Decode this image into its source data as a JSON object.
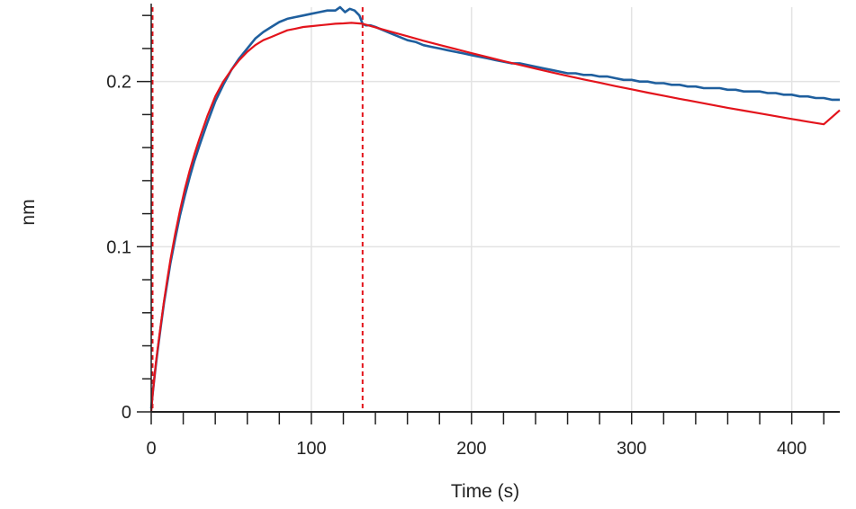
{
  "chart_data": {
    "type": "line",
    "xlabel": "Time (s)",
    "ylabel": "nm",
    "xlim": [
      0,
      430
    ],
    "ylim": [
      0,
      0.245
    ],
    "x_ticks": [
      0,
      100,
      200,
      300,
      400
    ],
    "x_tick_labels": [
      "0",
      "100",
      "200",
      "300",
      "400"
    ],
    "y_ticks": [
      0,
      0.1,
      0.2
    ],
    "y_tick_labels": [
      "0",
      "0.1",
      "0.2"
    ],
    "grid": true,
    "reference_lines_x": [
      0,
      132
    ],
    "series": [
      {
        "color": "#1f5f9e",
        "x": [
          0,
          1,
          2,
          3,
          4,
          6,
          8,
          10,
          12,
          15,
          18,
          21,
          24,
          27,
          30,
          35,
          40,
          45,
          50,
          55,
          60,
          65,
          70,
          75,
          80,
          85,
          90,
          95,
          100,
          105,
          110,
          115,
          118,
          121,
          124,
          127,
          130,
          132,
          134,
          137,
          140,
          145,
          150,
          155,
          160,
          165,
          170,
          175,
          180,
          185,
          190,
          195,
          200,
          205,
          210,
          215,
          220,
          225,
          230,
          235,
          240,
          245,
          250,
          255,
          260,
          265,
          270,
          275,
          280,
          285,
          290,
          295,
          300,
          305,
          310,
          315,
          320,
          325,
          330,
          335,
          340,
          345,
          350,
          355,
          360,
          365,
          370,
          375,
          380,
          385,
          390,
          395,
          400,
          405,
          410,
          415,
          420,
          425,
          430
        ],
        "y": [
          0.002,
          0.012,
          0.021,
          0.029,
          0.037,
          0.052,
          0.066,
          0.078,
          0.09,
          0.105,
          0.119,
          0.131,
          0.142,
          0.152,
          0.161,
          0.175,
          0.188,
          0.198,
          0.207,
          0.214,
          0.22,
          0.226,
          0.23,
          0.233,
          0.236,
          0.238,
          0.239,
          0.24,
          0.241,
          0.242,
          0.243,
          0.243,
          0.245,
          0.242,
          0.244,
          0.243,
          0.24,
          0.235,
          0.234,
          0.234,
          0.233,
          0.231,
          0.229,
          0.227,
          0.225,
          0.224,
          0.222,
          0.221,
          0.22,
          0.219,
          0.218,
          0.217,
          0.216,
          0.215,
          0.214,
          0.213,
          0.212,
          0.211,
          0.211,
          0.21,
          0.209,
          0.208,
          0.207,
          0.206,
          0.205,
          0.205,
          0.204,
          0.204,
          0.203,
          0.203,
          0.202,
          0.201,
          0.201,
          0.2,
          0.2,
          0.199,
          0.199,
          0.198,
          0.198,
          0.197,
          0.197,
          0.196,
          0.196,
          0.196,
          0.195,
          0.195,
          0.194,
          0.194,
          0.194,
          0.193,
          0.193,
          0.192,
          0.192,
          0.191,
          0.191,
          0.19,
          0.19,
          0.189,
          0.189
        ]
      },
      {
        "color": "#e3141c",
        "x": [
          0,
          1,
          2,
          3,
          4,
          6,
          8,
          10,
          12,
          15,
          18,
          21,
          24,
          27,
          30,
          35,
          40,
          45,
          50,
          55,
          60,
          65,
          70,
          75,
          80,
          85,
          90,
          95,
          100,
          105,
          110,
          115,
          120,
          125,
          132,
          140,
          150,
          160,
          170,
          180,
          190,
          200,
          210,
          220,
          230,
          240,
          250,
          260,
          270,
          280,
          290,
          300,
          310,
          320,
          330,
          340,
          350,
          360,
          370,
          380,
          390,
          400,
          410,
          420,
          430
        ],
        "y": [
          0.0,
          0.012,
          0.021,
          0.03,
          0.038,
          0.053,
          0.067,
          0.08,
          0.092,
          0.108,
          0.122,
          0.135,
          0.146,
          0.156,
          0.165,
          0.179,
          0.191,
          0.2,
          0.207,
          0.213,
          0.218,
          0.222,
          0.225,
          0.227,
          0.229,
          0.231,
          0.232,
          0.233,
          0.2335,
          0.234,
          0.2345,
          0.235,
          0.2352,
          0.2355,
          0.235,
          0.2328,
          0.2301,
          0.2274,
          0.2247,
          0.2222,
          0.2197,
          0.2172,
          0.2148,
          0.2124,
          0.2101,
          0.2078,
          0.2056,
          0.2034,
          0.2013,
          0.1993,
          0.1972,
          0.1953,
          0.1933,
          0.1914,
          0.1895,
          0.1877,
          0.1859,
          0.1841,
          0.1824,
          0.1807,
          0.179,
          0.1773,
          0.1757,
          0.1741,
          0.1826
        ]
      }
    ]
  }
}
